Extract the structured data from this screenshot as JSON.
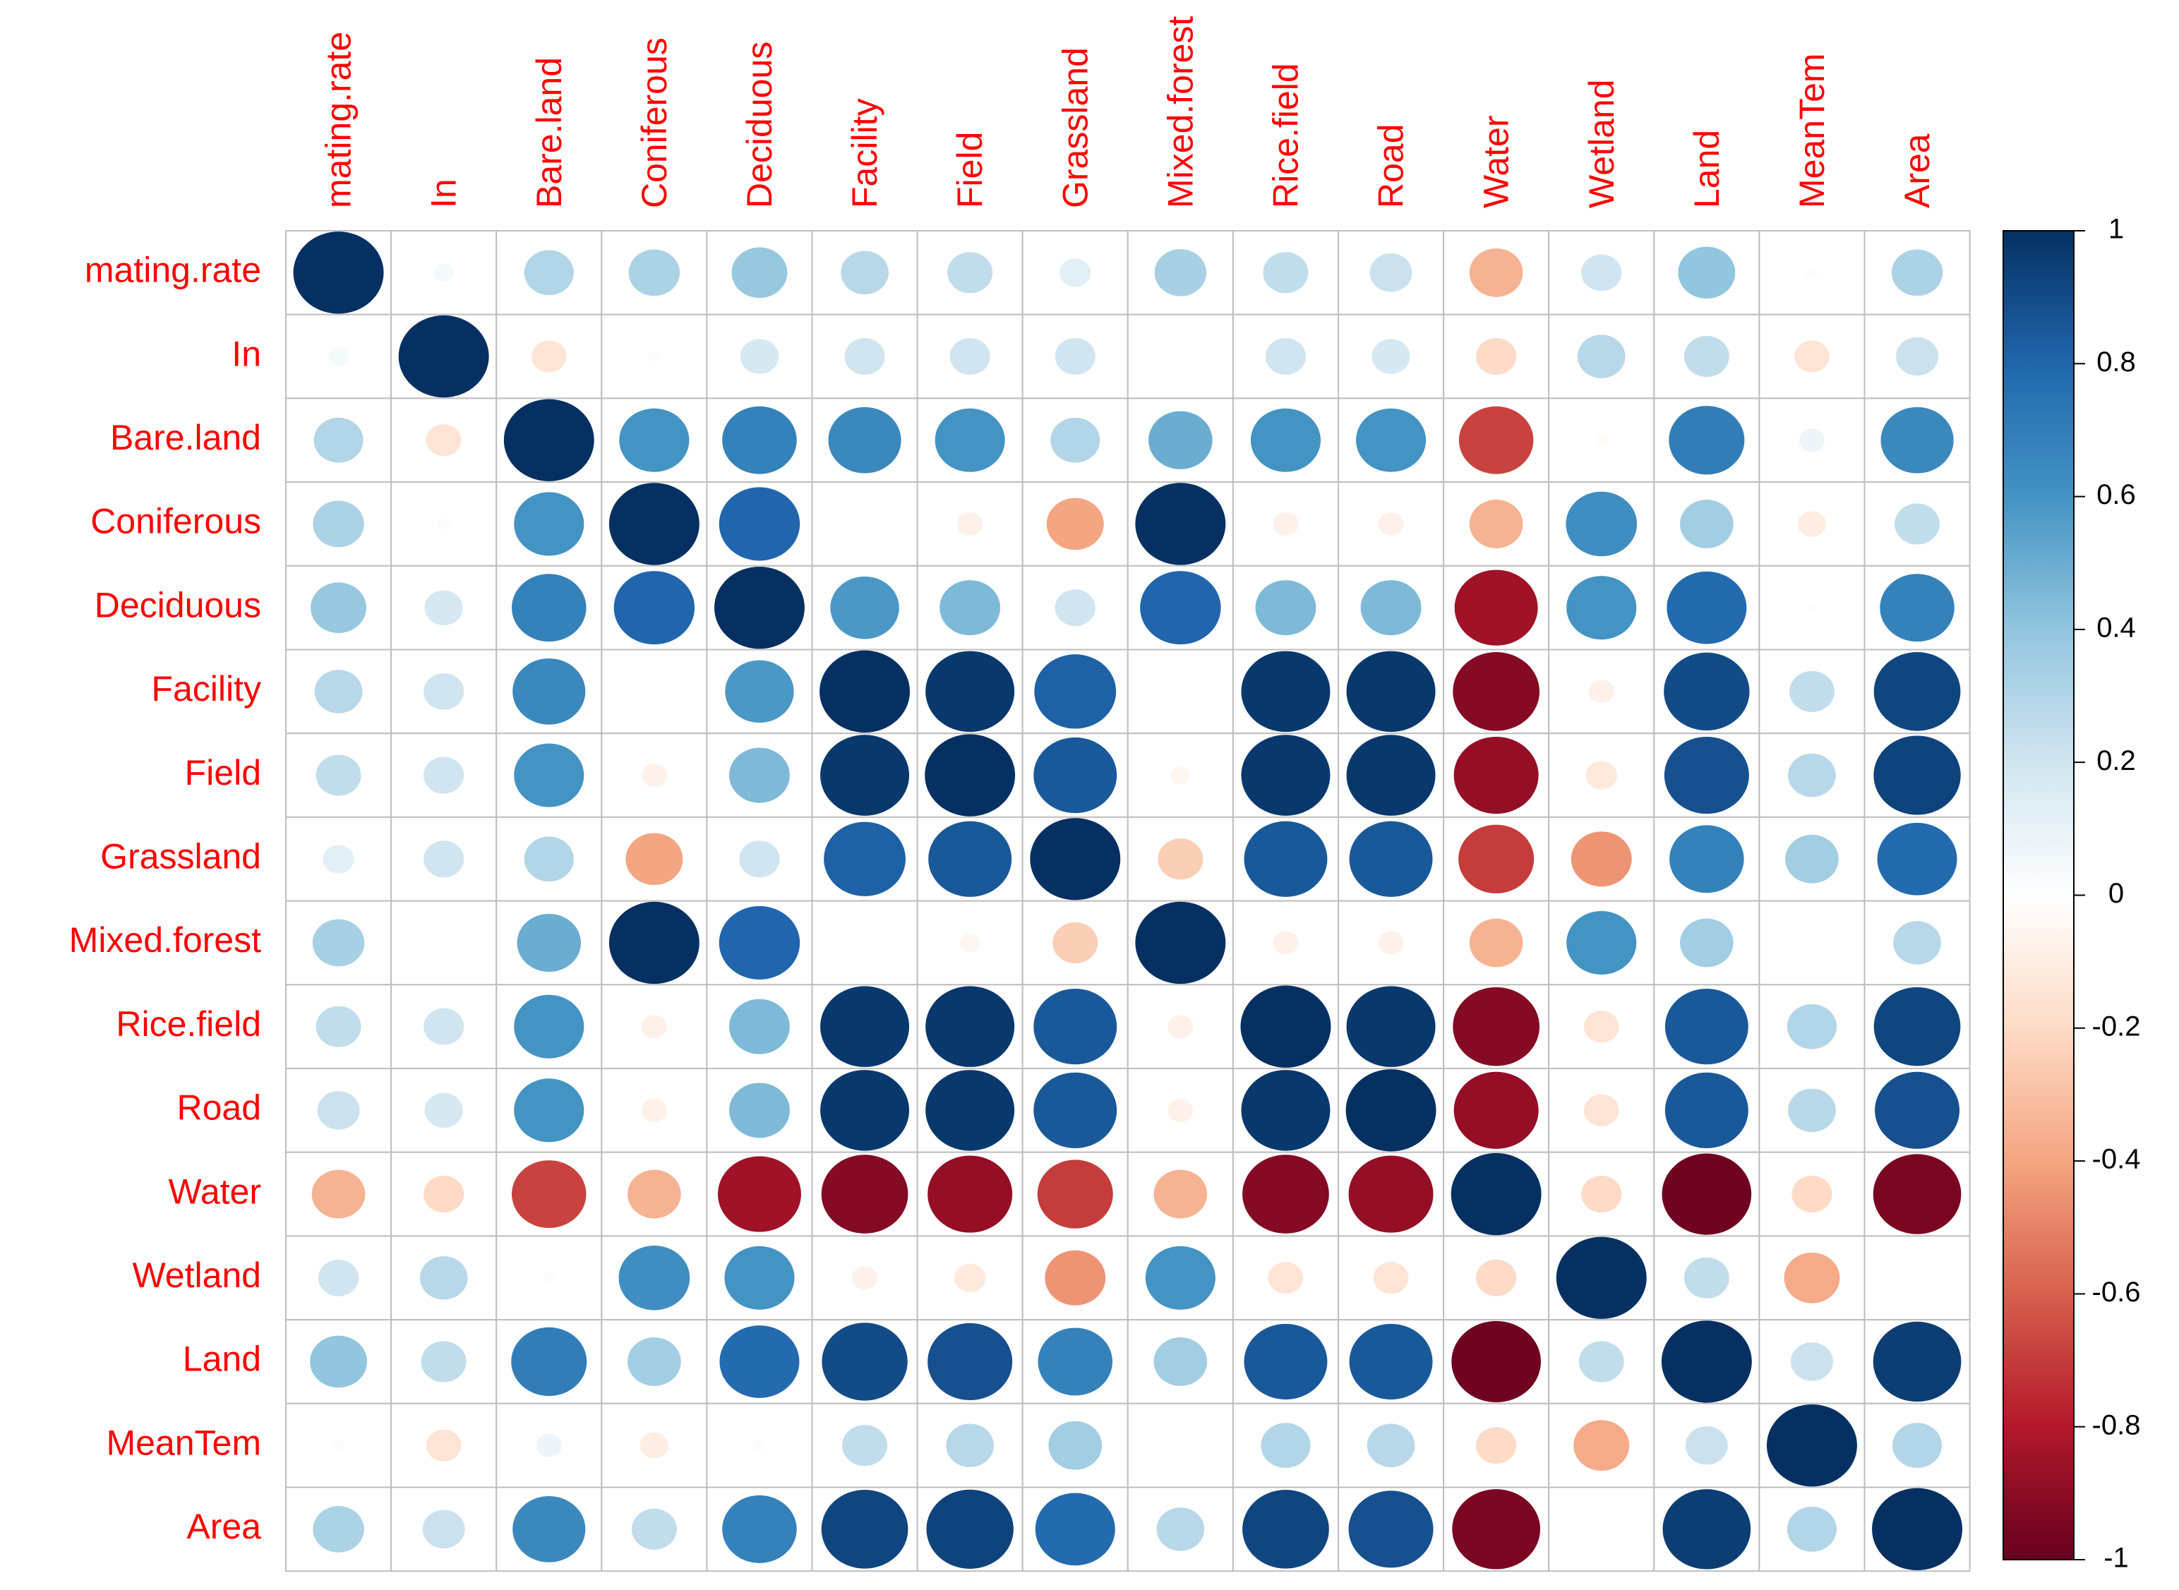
{
  "chart_data": {
    "type": "heatmap",
    "style": "circle correlation matrix (corrplot)",
    "variables": [
      "mating.rate",
      "In",
      "Bare.land",
      "Coniferous",
      "Deciduous",
      "Facility",
      "Field",
      "Grassland",
      "Mixed.forest",
      "Rice.field",
      "Road",
      "Water",
      "Wetland",
      "Land",
      "MeanTem",
      "Area"
    ],
    "matrix": [
      [
        1.0,
        0.05,
        0.3,
        0.32,
        0.38,
        0.28,
        0.25,
        0.12,
        0.33,
        0.25,
        0.22,
        -0.35,
        0.2,
        0.4,
        0.02,
        0.32
      ],
      [
        0.05,
        1.0,
        -0.15,
        -0.02,
        0.18,
        0.2,
        0.2,
        0.2,
        0.0,
        0.2,
        0.18,
        -0.2,
        0.28,
        0.25,
        -0.15,
        0.22
      ],
      [
        0.3,
        -0.15,
        1.0,
        0.6,
        0.68,
        0.65,
        0.6,
        0.3,
        0.5,
        0.6,
        0.6,
        -0.68,
        -0.02,
        0.7,
        0.08,
        0.65
      ],
      [
        0.32,
        -0.02,
        0.6,
        1.0,
        0.8,
        0.0,
        -0.08,
        -0.4,
        1.0,
        -0.08,
        -0.08,
        -0.35,
        0.62,
        0.35,
        -0.1,
        0.25
      ],
      [
        0.38,
        0.18,
        0.68,
        0.8,
        1.0,
        0.58,
        0.45,
        0.2,
        0.8,
        0.45,
        0.45,
        -0.85,
        0.6,
        0.78,
        0.02,
        0.68
      ],
      [
        0.28,
        0.2,
        0.65,
        0.0,
        0.58,
        1.0,
        0.97,
        0.82,
        0.0,
        0.97,
        0.97,
        -0.92,
        -0.08,
        0.9,
        0.25,
        0.92
      ],
      [
        0.25,
        0.2,
        0.6,
        -0.08,
        0.45,
        0.97,
        1.0,
        0.85,
        -0.05,
        0.97,
        0.97,
        -0.88,
        -0.12,
        0.88,
        0.28,
        0.93
      ],
      [
        0.12,
        0.2,
        0.3,
        -0.4,
        0.2,
        0.82,
        0.85,
        1.0,
        -0.25,
        0.85,
        0.85,
        -0.7,
        -0.45,
        0.68,
        0.35,
        0.78
      ],
      [
        0.33,
        0.0,
        0.5,
        1.0,
        0.8,
        0.0,
        -0.05,
        -0.25,
        1.0,
        -0.08,
        -0.08,
        -0.35,
        0.6,
        0.35,
        0.0,
        0.28
      ],
      [
        0.25,
        0.2,
        0.6,
        -0.08,
        0.45,
        0.97,
        0.97,
        0.85,
        -0.08,
        1.0,
        0.97,
        -0.92,
        -0.15,
        0.85,
        0.3,
        0.92
      ],
      [
        0.22,
        0.18,
        0.6,
        -0.08,
        0.45,
        0.97,
        0.97,
        0.85,
        -0.08,
        0.97,
        1.0,
        -0.88,
        -0.15,
        0.85,
        0.28,
        0.88
      ],
      [
        -0.35,
        -0.2,
        -0.68,
        -0.35,
        -0.85,
        -0.92,
        -0.88,
        -0.7,
        -0.35,
        -0.92,
        -0.88,
        1.0,
        -0.2,
        -0.98,
        -0.2,
        -0.95
      ],
      [
        0.2,
        0.28,
        -0.02,
        0.62,
        0.6,
        -0.08,
        -0.12,
        -0.45,
        0.6,
        -0.15,
        -0.15,
        -0.2,
        1.0,
        0.25,
        -0.38,
        0.0
      ],
      [
        0.4,
        0.25,
        0.7,
        0.35,
        0.78,
        0.9,
        0.88,
        0.68,
        0.35,
        0.85,
        0.85,
        -0.98,
        0.25,
        1.0,
        0.22,
        0.95
      ],
      [
        0.02,
        -0.15,
        0.08,
        -0.1,
        0.02,
        0.25,
        0.28,
        0.35,
        0.0,
        0.3,
        0.28,
        -0.2,
        -0.38,
        0.22,
        1.0,
        0.3
      ],
      [
        0.32,
        0.22,
        0.65,
        0.25,
        0.68,
        0.92,
        0.93,
        0.78,
        0.28,
        0.92,
        0.88,
        -0.95,
        0.0,
        0.95,
        0.3,
        1.0
      ]
    ],
    "colorbar": {
      "range": [
        -1,
        1
      ],
      "ticks": [
        "1",
        "0.8",
        "0.6",
        "0.4",
        "0.2",
        "0",
        "-0.2",
        "-0.4",
        "-0.6",
        "-0.8",
        "-1"
      ],
      "tick_values": [
        1,
        0.8,
        0.6,
        0.4,
        0.2,
        0,
        -0.2,
        -0.4,
        -0.6,
        -0.8,
        -1
      ],
      "palette": [
        "#67001f",
        "#b2182b",
        "#d6604d",
        "#f4a582",
        "#fddbc7",
        "#ffffff",
        "#d1e5f0",
        "#92c5de",
        "#4393c3",
        "#2166ac",
        "#053061"
      ]
    },
    "label_color": "#ff0000",
    "grid": true,
    "grid_color": "#bebebe",
    "legend_position": "right"
  }
}
